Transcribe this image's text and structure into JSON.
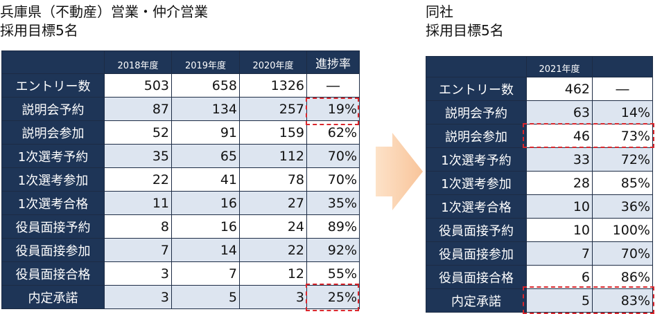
{
  "left": {
    "title_line1": "兵庫県（不動産）営業・仲介営業",
    "title_line2": "採用目標5名",
    "headers": [
      "2018年度",
      "2019年度",
      "2020年度",
      "進捗率"
    ],
    "rows": [
      {
        "label": "エントリー数",
        "values": [
          "503",
          "658",
          "1326",
          "―"
        ]
      },
      {
        "label": "説明会予約",
        "values": [
          "87",
          "134",
          "257",
          "19%"
        ]
      },
      {
        "label": "説明会参加",
        "values": [
          "52",
          "91",
          "159",
          "62%"
        ]
      },
      {
        "label": "1次選考予約",
        "values": [
          "35",
          "65",
          "112",
          "70%"
        ]
      },
      {
        "label": "1次選考参加",
        "values": [
          "22",
          "41",
          "78",
          "70%"
        ]
      },
      {
        "label": "1次選考合格",
        "values": [
          "11",
          "16",
          "27",
          "35%"
        ]
      },
      {
        "label": "役員面接予約",
        "values": [
          "8",
          "16",
          "24",
          "89%"
        ]
      },
      {
        "label": "役員面接参加",
        "values": [
          "7",
          "14",
          "22",
          "92%"
        ]
      },
      {
        "label": "役員面接合格",
        "values": [
          "3",
          "7",
          "12",
          "55%"
        ]
      },
      {
        "label": "内定承諾",
        "values": [
          "3",
          "5",
          "3",
          "25%"
        ]
      }
    ]
  },
  "right": {
    "title_line1": "同社",
    "title_line2": "採用目標5名",
    "headers": [
      "2021年度",
      ""
    ],
    "rows": [
      {
        "label": "エントリー数",
        "values": [
          "462",
          "―"
        ]
      },
      {
        "label": "説明会予約",
        "values": [
          "63",
          "14%"
        ]
      },
      {
        "label": "説明会参加",
        "values": [
          "46",
          "73%"
        ]
      },
      {
        "label": "1次選考予約",
        "values": [
          "33",
          "72%"
        ]
      },
      {
        "label": "1次選考参加",
        "values": [
          "28",
          "85%"
        ]
      },
      {
        "label": "1次選考合格",
        "values": [
          "10",
          "36%"
        ]
      },
      {
        "label": "役員面接予約",
        "values": [
          "10",
          "100%"
        ]
      },
      {
        "label": "役員面接参加",
        "values": [
          "7",
          "70%"
        ]
      },
      {
        "label": "役員面接合格",
        "values": [
          "6",
          "86%"
        ]
      },
      {
        "label": "内定承諾",
        "values": [
          "5",
          "83%"
        ]
      }
    ]
  },
  "colors": {
    "header_bg": "#1e3557",
    "alt_row_bg": "#dde5f0",
    "highlight": "#d9262c",
    "arrow": "#fbd0ac"
  }
}
